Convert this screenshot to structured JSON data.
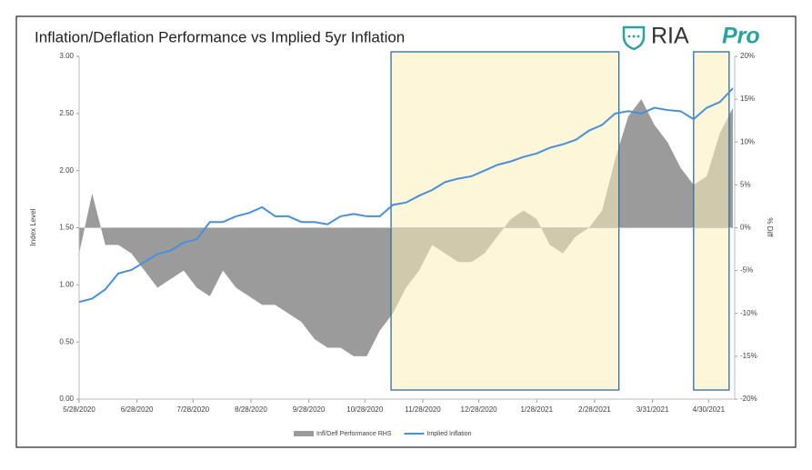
{
  "chart_data": {
    "type": "area-line",
    "title": "Inflation/Deflation Performance vs Implied 5yr Inflation",
    "brand": {
      "name": "RIA",
      "suffix": "Pro"
    },
    "ylabel": "Index Level",
    "y2label": "% Diff",
    "x": [
      "5/28/2020",
      "6/4/2020",
      "6/11/2020",
      "6/18/2020",
      "6/25/2020",
      "7/2/2020",
      "7/9/2020",
      "7/16/2020",
      "7/23/2020",
      "7/30/2020",
      "8/6/2020",
      "8/13/2020",
      "8/20/2020",
      "8/27/2020",
      "9/3/2020",
      "9/10/2020",
      "9/17/2020",
      "9/24/2020",
      "10/1/2020",
      "10/8/2020",
      "10/15/2020",
      "10/22/2020",
      "10/29/2020",
      "11/5/2020",
      "11/12/2020",
      "11/19/2020",
      "11/26/2020",
      "12/3/2020",
      "12/10/2020",
      "12/17/2020",
      "12/24/2020",
      "12/31/2020",
      "1/7/2021",
      "1/14/2021",
      "1/21/2021",
      "1/28/2021",
      "2/4/2021",
      "2/11/2021",
      "2/18/2021",
      "2/25/2021",
      "3/4/2021",
      "3/11/2021",
      "3/18/2021",
      "3/25/2021",
      "4/1/2021",
      "4/8/2021",
      "4/15/2021",
      "4/22/2021",
      "4/29/2021",
      "5/6/2021",
      "5/13/2021"
    ],
    "series": [
      {
        "name": "Infl/Defl Performance RHS",
        "color": "#9b9b9b",
        "axis": "y2",
        "kind": "area",
        "values": [
          -3,
          4,
          -2,
          -2,
          -3,
          -5,
          -7,
          -6,
          -5,
          -7,
          -8,
          -5,
          -7,
          -8,
          -9,
          -9,
          -10,
          -11,
          -13,
          -14,
          -14,
          -15,
          -15,
          -12,
          -10,
          -7,
          -5,
          -2,
          -3,
          -4,
          -4,
          -3,
          -1,
          1,
          2,
          1,
          -2,
          -3,
          -1,
          0,
          2,
          8,
          13,
          15,
          12,
          10,
          7,
          5,
          6,
          11,
          14
        ]
      },
      {
        "name": "Implied Inflation",
        "color": "#4a90d9",
        "axis": "y",
        "kind": "line",
        "values": [
          0.85,
          0.88,
          0.96,
          1.1,
          1.13,
          1.2,
          1.27,
          1.3,
          1.37,
          1.4,
          1.55,
          1.55,
          1.6,
          1.63,
          1.68,
          1.6,
          1.6,
          1.55,
          1.55,
          1.53,
          1.6,
          1.62,
          1.6,
          1.6,
          1.7,
          1.72,
          1.78,
          1.83,
          1.9,
          1.93,
          1.95,
          2.0,
          2.05,
          2.08,
          2.12,
          2.15,
          2.2,
          2.23,
          2.27,
          2.35,
          2.4,
          2.5,
          2.52,
          2.5,
          2.55,
          2.53,
          2.52,
          2.45,
          2.55,
          2.6,
          2.72
        ]
      }
    ],
    "xlim": [
      "5/28/2020",
      "5/14/2021"
    ],
    "xticks": [
      "5/28/2020",
      "6/28/2020",
      "7/28/2020",
      "8/28/2020",
      "9/28/2020",
      "10/28/2020",
      "11/28/2020",
      "12/28/2020",
      "1/28/2021",
      "2/28/2021",
      "3/31/2021",
      "4/30/2021"
    ],
    "ylim": [
      0,
      3
    ],
    "yticks": [
      {
        "value": 0,
        "label": "0.00"
      },
      {
        "value": 0.5,
        "label": "0.50"
      },
      {
        "value": 1,
        "label": "1.00"
      },
      {
        "value": 1.5,
        "label": "1.50"
      },
      {
        "value": 2,
        "label": "2.00"
      },
      {
        "value": 2.5,
        "label": "2.50"
      },
      {
        "value": 3,
        "label": "3.00"
      }
    ],
    "y2lim": [
      -20,
      20
    ],
    "y2ticks": [
      {
        "value": -20,
        "label": "-20%"
      },
      {
        "value": -15,
        "label": "-15%"
      },
      {
        "value": -10,
        "label": "-10%"
      },
      {
        "value": -5,
        "label": "-5%"
      },
      {
        "value": 0,
        "label": "0%"
      },
      {
        "value": 5,
        "label": "5%"
      },
      {
        "value": 10,
        "label": "10%"
      },
      {
        "value": 15,
        "label": "15%"
      },
      {
        "value": 20,
        "label": "20%"
      }
    ],
    "highlights": [
      {
        "start": "11/11/2020",
        "end": "3/13/2021"
      },
      {
        "start": "4/22/2021",
        "end": "5/11/2021"
      }
    ],
    "highlight_color": "#fbeeb8",
    "highlight_border": "#2e6da4",
    "grid": false,
    "legend": "bottom"
  }
}
